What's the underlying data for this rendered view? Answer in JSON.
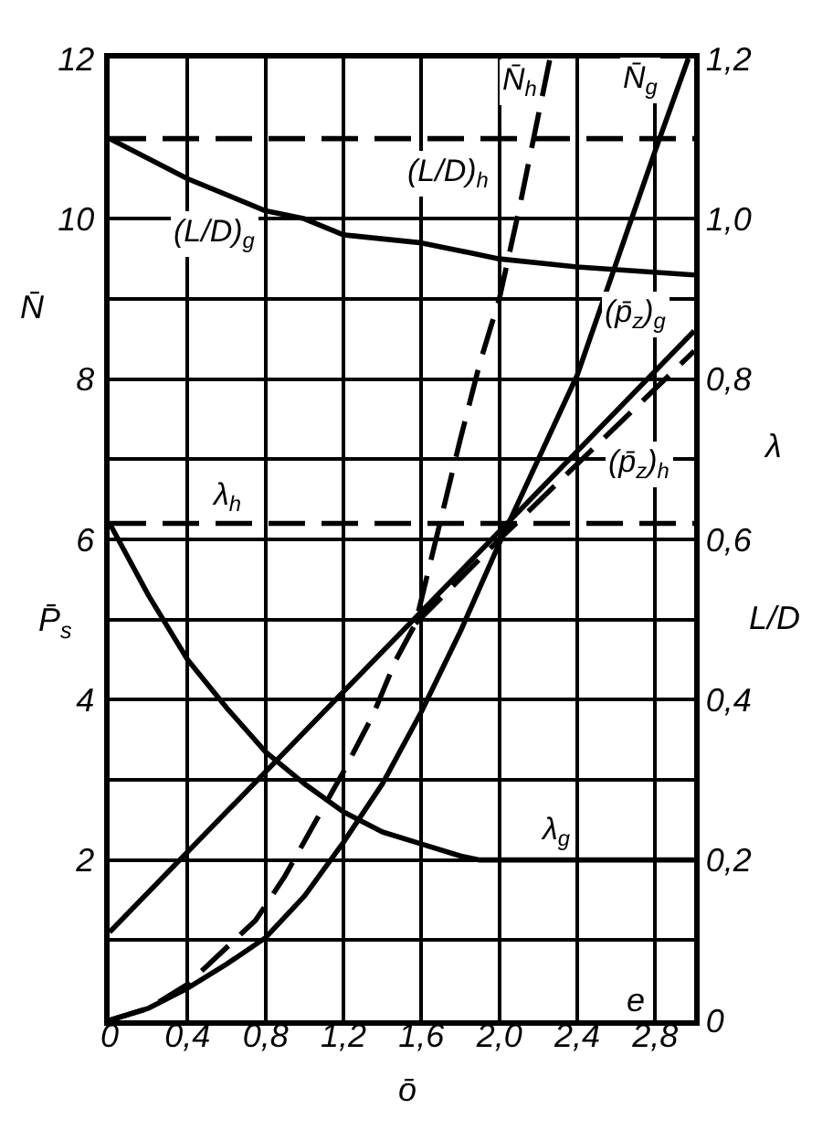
{
  "chart_data": {
    "type": "line",
    "xlabel": "ō",
    "ylabel": "N̄",
    "y2label": "λ",
    "annotations": [
      "P̄$_{s}$",
      "L/D",
      "e"
    ],
    "xlim": [
      0,
      3.0
    ],
    "xticks": [
      0,
      {
        "value": 0.4,
        "label": "0,4"
      },
      {
        "value": 0.8,
        "label": "0,8"
      },
      {
        "value": 1.2,
        "label": "1,2"
      },
      {
        "value": 1.6,
        "label": "1,6"
      },
      {
        "value": 2.0,
        "label": "2,0"
      },
      {
        "value": 2.4,
        "label": "2,4"
      },
      {
        "value": 2.8,
        "label": "2,8"
      }
    ],
    "ylim": [
      0,
      12
    ],
    "yticks": [
      {
        "value": 1,
        "label": null
      },
      2,
      {
        "value": 3,
        "label": null
      },
      4,
      {
        "value": 5,
        "label": null
      },
      6,
      {
        "value": 7,
        "label": null
      },
      8,
      {
        "value": 9,
        "label": null
      },
      10,
      12
    ],
    "y2lim": [
      0,
      1.2
    ],
    "y2ticks": [
      0,
      {
        "value": 0.2,
        "label": "0,2"
      },
      {
        "value": 0.4,
        "label": "0,4"
      },
      {
        "value": 0.6,
        "label": "0,6"
      },
      {
        "value": 0.8,
        "label": "0,8"
      },
      {
        "value": 1.0,
        "label": "1,0"
      },
      {
        "value": 1.2,
        "label": "1,2"
      }
    ],
    "grid": true,
    "series": [
      {
        "name": "N̄$_{h}$",
        "color": "#000000",
        "line_style": "dashed",
        "x": [
          0,
          0.2,
          0.4,
          0.75,
          0.9,
          1.05,
          1.2,
          1.35,
          1.47,
          1.57,
          1.7,
          1.8,
          1.9,
          2.0,
          2.1,
          2.26
        ],
        "values": [
          0,
          0.15,
          0.45,
          1.25,
          1.8,
          2.45,
          3.1,
          3.8,
          4.5,
          4.95,
          6.25,
          7.25,
          8.2,
          9.0,
          10.1,
          12.0
        ]
      },
      {
        "name": "N̄$_{g}$",
        "color": "#000000",
        "line_style": "solid",
        "x": [
          0,
          0.2,
          0.4,
          0.6,
          0.8,
          1.0,
          1.2,
          1.4,
          1.6,
          1.8,
          2.0,
          2.2,
          2.4,
          2.6,
          2.8,
          2.97
        ],
        "values": [
          0,
          0.15,
          0.4,
          0.7,
          1.03,
          1.55,
          2.22,
          2.95,
          3.85,
          4.85,
          5.95,
          7.0,
          8.05,
          9.45,
          10.85,
          12.0
        ]
      },
      {
        "name": "(p̄$_{z}$)$_{g}$",
        "color": "#000000",
        "line_style": "solid",
        "x": [
          0,
          3.0
        ],
        "values": [
          1.1,
          8.6
        ]
      },
      {
        "name": "(p̄$_{z}$)$_{h}$",
        "color": "#000000",
        "line_style": "dashed",
        "x": [
          1.57,
          2.0,
          3.0
        ],
        "values": [
          4.95,
          6.0,
          8.35
        ]
      },
      {
        "name": "λ$_{h}$",
        "color": "#000000",
        "line_style": "dashed",
        "axis": "y2",
        "x": [
          0,
          3.0
        ],
        "values": [
          0.62,
          0.62
        ]
      },
      {
        "name": "λ$_{g}$",
        "color": "#000000",
        "line_style": "solid",
        "axis": "y2",
        "x": [
          0,
          0.2,
          0.4,
          0.6,
          0.8,
          1.0,
          1.2,
          1.4,
          1.6,
          1.8,
          1.9,
          3.0
        ],
        "values": [
          0.62,
          0.53,
          0.45,
          0.39,
          0.335,
          0.295,
          0.26,
          0.235,
          0.22,
          0.205,
          0.2,
          0.2
        ]
      },
      {
        "name": "(L/D)$_{h}$",
        "color": "#000000",
        "line_style": "dashed",
        "axis": "y2",
        "x": [
          0,
          3.0
        ],
        "values": [
          1.1,
          1.1
        ]
      },
      {
        "name": "(L/D)$_{g}$",
        "color": "#000000",
        "line_style": "solid",
        "axis": "y2",
        "x": [
          0,
          0.4,
          0.8,
          1.0,
          1.2,
          1.6,
          2.0,
          2.4,
          3.0
        ],
        "values": [
          1.1,
          1.05,
          1.01,
          1.0,
          0.98,
          0.97,
          0.95,
          0.94,
          0.93
        ]
      }
    ]
  }
}
